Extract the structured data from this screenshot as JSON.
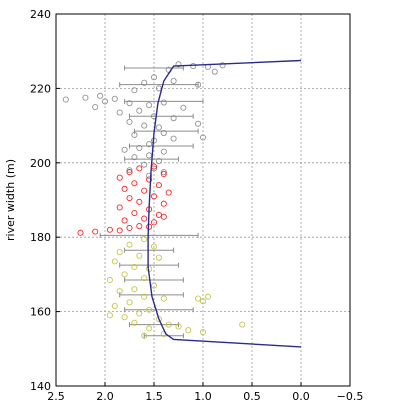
{
  "chart_data": {
    "type": "scatter",
    "title": "",
    "xlabel": "",
    "ylabel": "river width (m)",
    "x_axis_inverted": true,
    "xlim": [
      2.5,
      -0.5
    ],
    "ylim": [
      140,
      240
    ],
    "xticks": [
      "2.5",
      "2.0",
      "1.5",
      "1.0",
      "0.5",
      "0.0",
      "−0.5"
    ],
    "yticks": [
      "140",
      "160",
      "180",
      "200",
      "220",
      "240"
    ],
    "grid": true,
    "series": [
      {
        "color": "#808080",
        "marker": "open-circle",
        "y_range": [
          196,
          227
        ],
        "points": [
          [
            1.25,
            226.5
          ],
          [
            1.1,
            226.0
          ],
          [
            0.95,
            225.8
          ],
          [
            0.8,
            226.2
          ],
          [
            0.88,
            224.5
          ],
          [
            1.35,
            225.0
          ],
          [
            1.5,
            223.0
          ],
          [
            1.3,
            222.0
          ],
          [
            1.6,
            221.5
          ],
          [
            1.05,
            221.0
          ],
          [
            1.45,
            220.0
          ],
          [
            1.7,
            219.5
          ],
          [
            2.05,
            218.0
          ],
          [
            2.2,
            217.5
          ],
          [
            2.4,
            217.0
          ],
          [
            2.0,
            216.5
          ],
          [
            1.9,
            217.2
          ],
          [
            1.75,
            216.0
          ],
          [
            1.55,
            215.5
          ],
          [
            1.4,
            216.2
          ],
          [
            1.2,
            214.8
          ],
          [
            1.65,
            214.0
          ],
          [
            1.85,
            213.5
          ],
          [
            2.1,
            215.0
          ],
          [
            1.5,
            212.5
          ],
          [
            1.3,
            212.0
          ],
          [
            1.75,
            211.0
          ],
          [
            1.6,
            210.0
          ],
          [
            1.45,
            209.5
          ],
          [
            1.05,
            210.5
          ],
          [
            1.4,
            208.0
          ],
          [
            1.7,
            207.5
          ],
          [
            1.5,
            206.0
          ],
          [
            1.3,
            206.5
          ],
          [
            1.0,
            206.8
          ],
          [
            1.55,
            205.0
          ],
          [
            1.65,
            204.0
          ],
          [
            1.8,
            203.5
          ],
          [
            1.4,
            203.0
          ],
          [
            1.55,
            202.0
          ],
          [
            1.7,
            201.5
          ],
          [
            1.45,
            200.5
          ],
          [
            1.6,
            199.5
          ],
          [
            1.5,
            198.5
          ],
          [
            1.75,
            198.0
          ],
          [
            1.4,
            197.5
          ],
          [
            1.55,
            196.5
          ]
        ]
      },
      {
        "color": "#ff0000",
        "marker": "open-circle",
        "y_range": [
          181,
          200
        ],
        "points": [
          [
            1.5,
            199.0
          ],
          [
            1.65,
            198.5
          ],
          [
            1.75,
            197.5
          ],
          [
            1.4,
            197.0
          ],
          [
            1.85,
            196.0
          ],
          [
            1.55,
            195.5
          ],
          [
            1.7,
            194.5
          ],
          [
            1.45,
            194.0
          ],
          [
            1.8,
            193.0
          ],
          [
            1.6,
            192.5
          ],
          [
            1.35,
            192.0
          ],
          [
            1.5,
            191.0
          ],
          [
            1.75,
            190.5
          ],
          [
            1.65,
            189.5
          ],
          [
            1.4,
            189.0
          ],
          [
            1.85,
            188.0
          ],
          [
            1.55,
            187.5
          ],
          [
            1.7,
            186.5
          ],
          [
            1.45,
            186.0
          ],
          [
            1.6,
            185.0
          ],
          [
            1.8,
            184.5
          ],
          [
            1.5,
            184.0
          ],
          [
            1.65,
            183.0
          ],
          [
            1.75,
            182.5
          ],
          [
            1.95,
            182.0
          ],
          [
            2.1,
            181.5
          ],
          [
            2.25,
            181.2
          ],
          [
            1.85,
            181.8
          ],
          [
            1.55,
            182.8
          ],
          [
            1.4,
            185.5
          ]
        ]
      },
      {
        "color": "#bcbc2e",
        "marker": "open-circle",
        "y_range": [
          153,
          180
        ],
        "points": [
          [
            1.6,
            179.5
          ],
          [
            1.75,
            178.0
          ],
          [
            1.5,
            177.5
          ],
          [
            1.85,
            176.0
          ],
          [
            1.65,
            175.0
          ],
          [
            1.45,
            174.5
          ],
          [
            1.9,
            173.5
          ],
          [
            1.7,
            172.0
          ],
          [
            1.55,
            171.5
          ],
          [
            1.8,
            170.0
          ],
          [
            1.6,
            169.0
          ],
          [
            1.95,
            168.5
          ],
          [
            1.5,
            167.0
          ],
          [
            1.7,
            166.0
          ],
          [
            1.85,
            165.5
          ],
          [
            1.6,
            164.0
          ],
          [
            1.4,
            163.5
          ],
          [
            1.75,
            162.5
          ],
          [
            1.9,
            161.5
          ],
          [
            1.55,
            160.5
          ],
          [
            1.65,
            159.5
          ],
          [
            1.8,
            158.5
          ],
          [
            1.45,
            158.0
          ],
          [
            1.7,
            157.0
          ],
          [
            1.35,
            156.5
          ],
          [
            1.25,
            156.0
          ],
          [
            1.55,
            155.5
          ],
          [
            1.15,
            155.0
          ],
          [
            1.0,
            154.5
          ],
          [
            1.4,
            154.0
          ],
          [
            1.6,
            153.5
          ],
          [
            1.05,
            163.5
          ],
          [
            0.95,
            164.0
          ],
          [
            1.0,
            162.8
          ],
          [
            0.6,
            156.5
          ],
          [
            1.95,
            159.0
          ]
        ]
      }
    ],
    "error_bars": [
      {
        "y": 225.5,
        "x_low": 1.8,
        "x_high": 1.2
      },
      {
        "y": 221.0,
        "x_low": 1.85,
        "x_high": 1.05
      },
      {
        "y": 216.5,
        "x_low": 1.8,
        "x_high": 1.0
      },
      {
        "y": 212.5,
        "x_low": 1.75,
        "x_high": 1.1
      },
      {
        "y": 208.5,
        "x_low": 1.7,
        "x_high": 1.05
      },
      {
        "y": 204.5,
        "x_low": 1.75,
        "x_high": 1.1
      },
      {
        "y": 201.0,
        "x_low": 1.8,
        "x_high": 1.25
      },
      {
        "y": 180.5,
        "x_low": 2.05,
        "x_high": 1.05
      },
      {
        "y": 176.5,
        "x_low": 1.8,
        "x_high": 1.3
      },
      {
        "y": 172.5,
        "x_low": 1.85,
        "x_high": 1.25
      },
      {
        "y": 168.5,
        "x_low": 1.8,
        "x_high": 1.2
      },
      {
        "y": 164.5,
        "x_low": 1.85,
        "x_high": 1.2
      },
      {
        "y": 160.5,
        "x_low": 1.8,
        "x_high": 1.1
      },
      {
        "y": 156.5,
        "x_low": 1.75,
        "x_high": 1.25
      },
      {
        "y": 153.5,
        "x_low": 1.6,
        "x_high": 1.2
      }
    ],
    "curve": {
      "color": "#2b2b8f",
      "points": [
        [
          0.0,
          227.5
        ],
        [
          1.3,
          226.0
        ],
        [
          1.4,
          222.0
        ],
        [
          1.46,
          216.0
        ],
        [
          1.5,
          208.0
        ],
        [
          1.53,
          198.0
        ],
        [
          1.55,
          188.0
        ],
        [
          1.56,
          180.0
        ],
        [
          1.56,
          172.0
        ],
        [
          1.52,
          164.0
        ],
        [
          1.45,
          158.0
        ],
        [
          1.38,
          154.0
        ],
        [
          1.3,
          152.5
        ],
        [
          0.0,
          150.5
        ]
      ]
    }
  }
}
